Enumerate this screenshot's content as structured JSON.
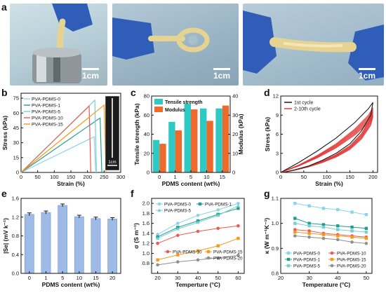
{
  "panel_labels": {
    "a": "a",
    "b": "b",
    "c": "c",
    "d": "d",
    "e": "e",
    "f": "f",
    "g": "g"
  },
  "photos": {
    "scale_label": "1cm"
  },
  "inset": {
    "scale_label": "1cm"
  },
  "colors": {
    "glove": "#2f5db8",
    "sample": "#e6d391",
    "bg_left": "#b8cfd8",
    "bg_mid": "#9fb8c9",
    "bg_right": "#a9c0cf",
    "teal": "#2fc9c3",
    "orange": "#ec6a2c",
    "red_cycles": "#e23b3b",
    "blue_bar": "#9dbbe6",
    "pva0": "#89d3ee",
    "pva1": "#1f9e8f",
    "pva5": "#77cfd0",
    "pva10": "#ea5a50",
    "pva15": "#f39a1b",
    "pva20": "#8f8f8f"
  },
  "chart_data": [
    {
      "panel": "b",
      "type": "line",
      "xlabel": "Strain (%)",
      "ylabel": "Stress (kPa)",
      "xlim": [
        0,
        300
      ],
      "ylim": [
        0,
        80
      ],
      "xticks": [
        0,
        50,
        100,
        150,
        200,
        250,
        300
      ],
      "yticks": [
        0,
        15,
        30,
        45,
        60,
        75
      ],
      "legend": "top-left",
      "series": [
        {
          "name": "PVA-PDMS-0",
          "color": "#89d3ee",
          "x": [
            0,
            220,
            225
          ],
          "y": [
            0,
            36,
            0
          ]
        },
        {
          "name": "PVA-PDMS-1",
          "color": "#1f9e8f",
          "x": [
            0,
            238,
            243
          ],
          "y": [
            0,
            55,
            0
          ]
        },
        {
          "name": "PVA-PDMS-5",
          "color": "#77cfd0",
          "x": [
            0,
            222,
            227
          ],
          "y": [
            0,
            73,
            0
          ]
        },
        {
          "name": "PVA-PDMS-10",
          "color": "#ea5a50",
          "x": [
            0,
            205,
            210
          ],
          "y": [
            0,
            67,
            0
          ]
        },
        {
          "name": "PVA-PDMS-15",
          "color": "#f39a1b",
          "x": [
            0,
            250,
            255
          ],
          "y": [
            0,
            68,
            0
          ]
        }
      ]
    },
    {
      "panel": "c",
      "type": "bar",
      "xlabel": "PDMS content (wt%)",
      "ylabel": "Tensile strength (kPa)",
      "ylabel_right": "Modulus (kPa)",
      "categories": [
        "0",
        "1",
        "5",
        "10",
        "15"
      ],
      "ylim": [
        0,
        80
      ],
      "yticks": [
        0,
        20,
        40,
        60,
        80
      ],
      "ylim_right": [
        0,
        40
      ],
      "yticks_right": [
        0,
        10,
        20,
        30,
        40
      ],
      "legend": "top-left",
      "series": [
        {
          "name": "Tensile strength",
          "color": "#2fc9c3",
          "axis": "left",
          "values": [
            34,
            53,
            72,
            67,
            67
          ]
        },
        {
          "name": "Modulus",
          "color": "#ec6a2c",
          "axis": "right",
          "values": [
            15,
            22,
            33,
            27,
            35
          ]
        }
      ]
    },
    {
      "panel": "d",
      "type": "line",
      "xlabel": "Strain (%)",
      "ylabel": "Stress (kPa)",
      "xlim": [
        0,
        210
      ],
      "ylim": [
        0,
        12
      ],
      "xticks": [
        0,
        50,
        100,
        150,
        200
      ],
      "yticks": [
        0,
        3,
        6,
        9,
        12
      ],
      "legend": "top-left",
      "series": [
        {
          "name": "1st cycle",
          "color": "#1a1a1a",
          "x": [
            0,
            40,
            80,
            120,
            160,
            190,
            200,
            195,
            175,
            150,
            120,
            90,
            60,
            30,
            5
          ],
          "y": [
            0,
            1.6,
            3.4,
            5.4,
            7.8,
            10.0,
            11.0,
            9.0,
            6.5,
            4.5,
            3.0,
            1.9,
            1.0,
            0.4,
            0
          ]
        },
        {
          "name": "2-10th cycle",
          "color": "#e23b3b",
          "x": [
            0,
            40,
            80,
            120,
            160,
            190,
            200,
            195,
            175,
            150,
            120,
            90,
            60,
            30,
            5
          ],
          "y": [
            0,
            1.2,
            2.7,
            4.5,
            6.8,
            9.0,
            10.2,
            8.6,
            6.1,
            4.2,
            2.8,
            1.8,
            1.0,
            0.4,
            0
          ]
        }
      ]
    },
    {
      "panel": "e",
      "type": "bar",
      "xlabel": "PDMS content (wt%)",
      "ylabel": "|Se| (mV k⁻¹)",
      "categories": [
        "0",
        "1",
        "5",
        "10",
        "15",
        "20"
      ],
      "values": [
        1.26,
        1.3,
        1.45,
        1.21,
        1.17,
        1.16
      ],
      "errors": [
        0.03,
        0.03,
        0.03,
        0.03,
        0.03,
        0.03
      ],
      "ylim": [
        0,
        1.6
      ],
      "yticks": [
        0.0,
        0.4,
        0.8,
        1.2,
        1.6
      ],
      "yticklabels": [
        "0.0",
        "0.4",
        "0.8",
        "1.2",
        "1.6"
      ]
    },
    {
      "panel": "f",
      "type": "line",
      "xlabel": "Temperture (°C)",
      "ylabel": "σ (S m⁻¹)",
      "xlim": [
        17,
        63
      ],
      "ylim": [
        0.6,
        2.1
      ],
      "xticks": [
        20,
        30,
        40,
        50,
        60
      ],
      "yticks": [
        0.8,
        1.0,
        1.2,
        1.4,
        1.6,
        1.8,
        2.0
      ],
      "yticklabels": [
        "0.8",
        "1.0",
        "1.2",
        "1.4",
        "1.6",
        "1.8",
        "2.0"
      ],
      "x": [
        20,
        30,
        40,
        50,
        60
      ],
      "series": [
        {
          "name": "PVA-PDMS-0",
          "color": "#89d3ee",
          "marker": "circle",
          "values": [
            1.38,
            1.6,
            1.76,
            1.87,
            2.0
          ]
        },
        {
          "name": "PVA-PDMS-1",
          "color": "#1f9e8f",
          "marker": "square",
          "values": [
            1.33,
            1.52,
            1.65,
            1.78,
            1.9
          ]
        },
        {
          "name": "PVA-PDMS-5",
          "color": "#77cfd0",
          "marker": "triangle",
          "values": [
            1.3,
            1.49,
            1.62,
            1.76,
            1.95
          ]
        },
        {
          "name": "PVA-PDMS-10",
          "color": "#ea5a50",
          "marker": "circle",
          "values": [
            1.2,
            1.36,
            1.44,
            1.5,
            1.55
          ]
        },
        {
          "name": "PVA-PDMS-15",
          "color": "#f39a1b",
          "marker": "square",
          "values": [
            0.87,
            0.97,
            1.05,
            1.15,
            1.3
          ]
        },
        {
          "name": "PVA-PDMS-20",
          "color": "#8f8f8f",
          "marker": "circle",
          "values": [
            0.77,
            0.83,
            0.87,
            0.91,
            0.96
          ]
        }
      ]
    },
    {
      "panel": "g",
      "type": "line",
      "xlabel": "Temperature (°C)",
      "ylabel": "κ (W m⁻¹K⁻¹)",
      "xlim": [
        20,
        52
      ],
      "ylim": [
        0.8,
        1.1
      ],
      "xticks": [
        20,
        30,
        40,
        50
      ],
      "yticks": [
        0.8,
        0.9,
        1.0,
        1.1
      ],
      "yticklabels": [
        "0.8",
        "0.9",
        "1.0",
        "1.1"
      ],
      "x": [
        25,
        30,
        35,
        40,
        45,
        50
      ],
      "series": [
        {
          "name": "PVA-PDMS-0",
          "color": "#89d3ee",
          "marker": "square",
          "values": [
            1.08,
            1.07,
            1.06,
            1.055,
            1.045,
            1.035
          ]
        },
        {
          "name": "PVA-PDMS-1",
          "color": "#1f9e8f",
          "marker": "square",
          "values": [
            1.02,
            1.0,
            0.995,
            0.99,
            0.985,
            0.98
          ]
        },
        {
          "name": "PVA-PDMS-5",
          "color": "#77cfd0",
          "marker": "square",
          "values": [
            1.0,
            0.99,
            0.985,
            0.975,
            0.97,
            0.965
          ]
        },
        {
          "name": "PVA-PDMS-10",
          "color": "#ea5a50",
          "marker": "circle",
          "values": [
            0.975,
            0.97,
            0.96,
            0.955,
            0.95,
            0.945
          ]
        },
        {
          "name": "PVA-PDMS-15",
          "color": "#f39a1b",
          "marker": "square",
          "values": [
            0.965,
            0.96,
            0.955,
            0.95,
            0.945,
            0.94
          ]
        },
        {
          "name": "PVA-PDMS-20",
          "color": "#8f8f8f",
          "marker": "circle",
          "values": [
            0.95,
            0.945,
            0.94,
            0.935,
            0.925,
            0.92
          ]
        }
      ]
    }
  ]
}
